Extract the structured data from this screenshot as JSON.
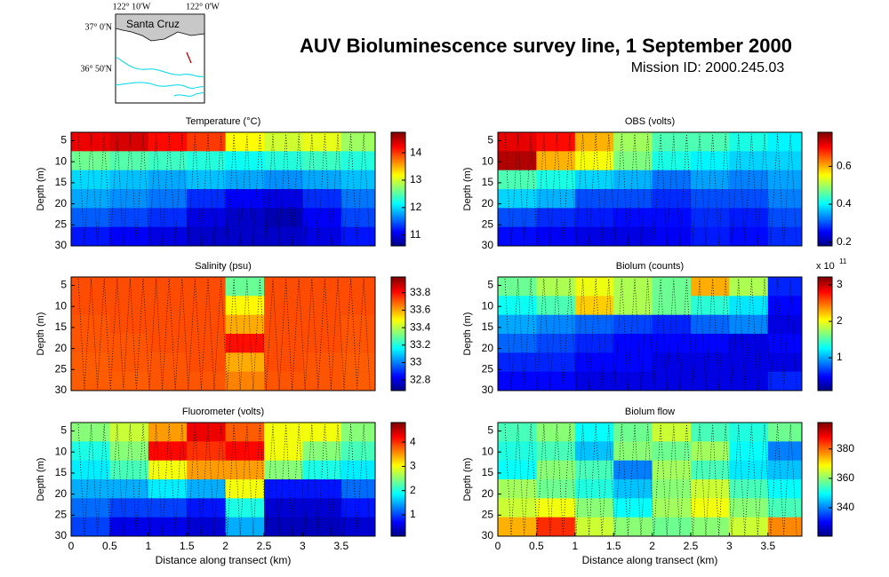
{
  "title": "AUV Bioluminescence survey line, 1 September 2000",
  "subtitle": "Mission ID: 2000.245.03",
  "map": {
    "lon_labels": [
      "122° 10'W",
      "122° 0'W"
    ],
    "lat_labels": [
      "37° 0'N",
      "36° 50'N"
    ],
    "place": "Santa Cruz"
  },
  "chart_data": [
    {
      "type": "heatmap",
      "title": "Temperature (°C)",
      "ylabel": "Depth (m)",
      "colormap": "jet",
      "x": [
        0.25,
        0.75,
        1.25,
        1.75,
        2.25,
        2.75,
        3.25,
        3.75
      ],
      "y": [
        5.25,
        9.75,
        14.25,
        18.75,
        23.25,
        27.75
      ],
      "z": [
        [
          14.3,
          14.4,
          14.2,
          14.0,
          13.2,
          13.0,
          13.1,
          12.8
        ],
        [
          12.6,
          12.5,
          12.4,
          12.3,
          12.2,
          12.3,
          12.4,
          12.3
        ],
        [
          12.0,
          11.9,
          11.8,
          11.9,
          11.8,
          11.7,
          11.8,
          11.9
        ],
        [
          11.8,
          11.7,
          11.6,
          11.3,
          11.1,
          11.0,
          11.3,
          11.6
        ],
        [
          11.5,
          11.4,
          11.3,
          11.0,
          10.9,
          10.8,
          11.1,
          11.4
        ],
        [
          11.2,
          11.1,
          11.0,
          10.9,
          10.9,
          10.9,
          11.0,
          11.2
        ]
      ],
      "xlim": [
        0,
        3.94
      ],
      "ylim": [
        3,
        30
      ],
      "yreverse": true,
      "yticks": [
        5,
        10,
        15,
        20,
        25,
        30
      ],
      "clim": [
        10.6,
        14.75
      ],
      "cticks": [
        11,
        12,
        13,
        14
      ]
    },
    {
      "type": "heatmap",
      "title": "OBS (volts)",
      "ylabel": "Depth (m)",
      "colormap": "jet",
      "x": [
        0.25,
        0.75,
        1.25,
        1.75,
        2.25,
        2.75,
        3.25,
        3.75
      ],
      "y": [
        5.25,
        9.75,
        14.25,
        18.75,
        23.25,
        27.75
      ],
      "z": [
        [
          0.72,
          0.7,
          0.6,
          0.5,
          0.45,
          0.45,
          0.42,
          0.4
        ],
        [
          0.75,
          0.6,
          0.55,
          0.48,
          0.42,
          0.4,
          0.38,
          0.38
        ],
        [
          0.45,
          0.42,
          0.38,
          0.36,
          0.32,
          0.35,
          0.33,
          0.35
        ],
        [
          0.38,
          0.36,
          0.3,
          0.3,
          0.28,
          0.3,
          0.3,
          0.33
        ],
        [
          0.3,
          0.28,
          0.27,
          0.26,
          0.26,
          0.28,
          0.27,
          0.3
        ],
        [
          0.26,
          0.25,
          0.24,
          0.24,
          0.25,
          0.27,
          0.26,
          0.28
        ]
      ],
      "xlim": [
        0,
        3.94
      ],
      "ylim": [
        3,
        30
      ],
      "yreverse": true,
      "yticks": [
        5,
        10,
        15,
        20,
        25,
        30
      ],
      "clim": [
        0.18,
        0.78
      ],
      "cticks": [
        0.2,
        0.4,
        0.6
      ]
    },
    {
      "type": "heatmap",
      "title": "Salinity (psu)",
      "ylabel": "Depth (m)",
      "colormap": "jet",
      "x": [
        0.25,
        0.75,
        1.25,
        1.75,
        2.25,
        2.75,
        3.25,
        3.75
      ],
      "y": [
        5.25,
        9.75,
        14.25,
        18.75,
        23.25,
        27.75
      ],
      "z": [
        [
          33.72,
          33.72,
          33.72,
          33.72,
          33.3,
          33.72,
          33.72,
          33.72
        ],
        [
          33.72,
          33.72,
          33.72,
          33.72,
          33.5,
          33.72,
          33.72,
          33.72
        ],
        [
          33.71,
          33.72,
          33.72,
          33.72,
          33.6,
          33.72,
          33.72,
          33.71
        ],
        [
          33.71,
          33.71,
          33.72,
          33.72,
          33.8,
          33.72,
          33.72,
          33.71
        ],
        [
          33.7,
          33.71,
          33.71,
          33.72,
          33.6,
          33.72,
          33.71,
          33.7
        ],
        [
          33.7,
          33.7,
          33.71,
          33.71,
          33.65,
          33.71,
          33.71,
          33.7
        ]
      ],
      "xlim": [
        0,
        3.94
      ],
      "ylim": [
        3,
        30
      ],
      "yreverse": true,
      "yticks": [
        5,
        10,
        15,
        20,
        25,
        30
      ],
      "clim": [
        32.68,
        33.98
      ],
      "cticks": [
        32.8,
        33,
        33.2,
        33.4,
        33.6,
        33.8
      ]
    },
    {
      "type": "heatmap",
      "title": "Biolum (counts)",
      "ylabel": "Depth (m)",
      "colormap": "jet",
      "colorbar_exponent": {
        "base": "x 10",
        "power": "11"
      },
      "x": [
        0.25,
        0.75,
        1.25,
        1.75,
        2.25,
        2.75,
        3.25,
        3.75
      ],
      "y": [
        5.25,
        9.75,
        14.25,
        18.75,
        23.25,
        27.75
      ],
      "z": [
        [
          1.6,
          1.8,
          2.0,
          1.8,
          1.6,
          2.3,
          1.8,
          0.6
        ],
        [
          1.3,
          1.5,
          2.2,
          1.8,
          1.6,
          1.4,
          1.2,
          0.5
        ],
        [
          1.0,
          0.9,
          0.8,
          0.7,
          0.6,
          0.8,
          0.9,
          0.4
        ],
        [
          0.8,
          0.7,
          0.6,
          0.5,
          0.5,
          0.5,
          0.4,
          0.5
        ],
        [
          0.6,
          0.6,
          0.5,
          0.5,
          0.4,
          0.4,
          0.4,
          0.4
        ],
        [
          0.5,
          0.5,
          0.4,
          0.4,
          0.4,
          0.4,
          0.4,
          0.6
        ]
      ],
      "xlim": [
        0,
        3.94
      ],
      "ylim": [
        3,
        30
      ],
      "yreverse": true,
      "yticks": [
        5,
        10,
        15,
        20,
        25,
        30
      ],
      "clim": [
        0.1,
        3.22
      ],
      "cticks": [
        1,
        2,
        3
      ]
    },
    {
      "type": "heatmap",
      "title": "Fluorometer (volts)",
      "ylabel": "Depth (m)",
      "xlabel": "Distance along transect (km)",
      "colormap": "jet",
      "x": [
        0.25,
        0.75,
        1.25,
        1.75,
        2.25,
        2.75,
        3.25,
        3.75
      ],
      "y": [
        5.25,
        9.75,
        14.25,
        18.75,
        23.25,
        27.75
      ],
      "z": [
        [
          2.5,
          2.8,
          3.5,
          4.3,
          3.8,
          3.0,
          3.0,
          2.5
        ],
        [
          2.0,
          2.5,
          4.2,
          4.0,
          4.2,
          3.0,
          2.5,
          2.2
        ],
        [
          1.8,
          2.2,
          3.0,
          3.5,
          3.5,
          2.5,
          2.0,
          1.8
        ],
        [
          1.5,
          1.5,
          1.8,
          1.5,
          3.0,
          0.8,
          0.8,
          1.2
        ],
        [
          1.2,
          1.0,
          1.0,
          0.8,
          2.0,
          0.5,
          0.5,
          0.8
        ],
        [
          1.0,
          0.6,
          0.6,
          0.5,
          1.5,
          0.4,
          0.4,
          0.5
        ]
      ],
      "xlim": [
        0,
        3.94
      ],
      "ylim": [
        3,
        30
      ],
      "yreverse": true,
      "yticks": [
        5,
        10,
        15,
        20,
        25,
        30
      ],
      "xticks": [
        0,
        0.5,
        1,
        1.5,
        2,
        2.5,
        3,
        3.5
      ],
      "clim": [
        0.12,
        4.81
      ],
      "cticks": [
        1,
        2,
        3,
        4
      ]
    },
    {
      "type": "heatmap",
      "title": "Biolum flow",
      "ylabel": "Depth (m)",
      "xlabel": "Distance along transect (km)",
      "colormap": "jet",
      "x": [
        0.25,
        0.75,
        1.25,
        1.75,
        2.25,
        2.75,
        3.25,
        3.75
      ],
      "y": [
        5.25,
        9.75,
        14.25,
        18.75,
        23.25,
        27.75
      ],
      "z": [
        [
          355,
          360,
          350,
          358,
          365,
          355,
          352,
          358
        ],
        [
          352,
          355,
          345,
          360,
          358,
          362,
          350,
          340
        ],
        [
          350,
          360,
          355,
          340,
          362,
          355,
          348,
          345
        ],
        [
          362,
          358,
          352,
          345,
          360,
          365,
          355,
          350
        ],
        [
          365,
          368,
          360,
          350,
          362,
          368,
          360,
          355
        ],
        [
          375,
          385,
          365,
          360,
          358,
          360,
          365,
          378
        ]
      ],
      "xlim": [
        0,
        3.94
      ],
      "ylim": [
        3,
        30
      ],
      "yreverse": true,
      "yticks": [
        5,
        10,
        15,
        20,
        25,
        30
      ],
      "xticks": [
        0,
        0.5,
        1,
        1.5,
        2,
        2.5,
        3,
        3.5
      ],
      "clim": [
        320.6,
        398
      ],
      "cticks": [
        340,
        360,
        380
      ]
    }
  ]
}
